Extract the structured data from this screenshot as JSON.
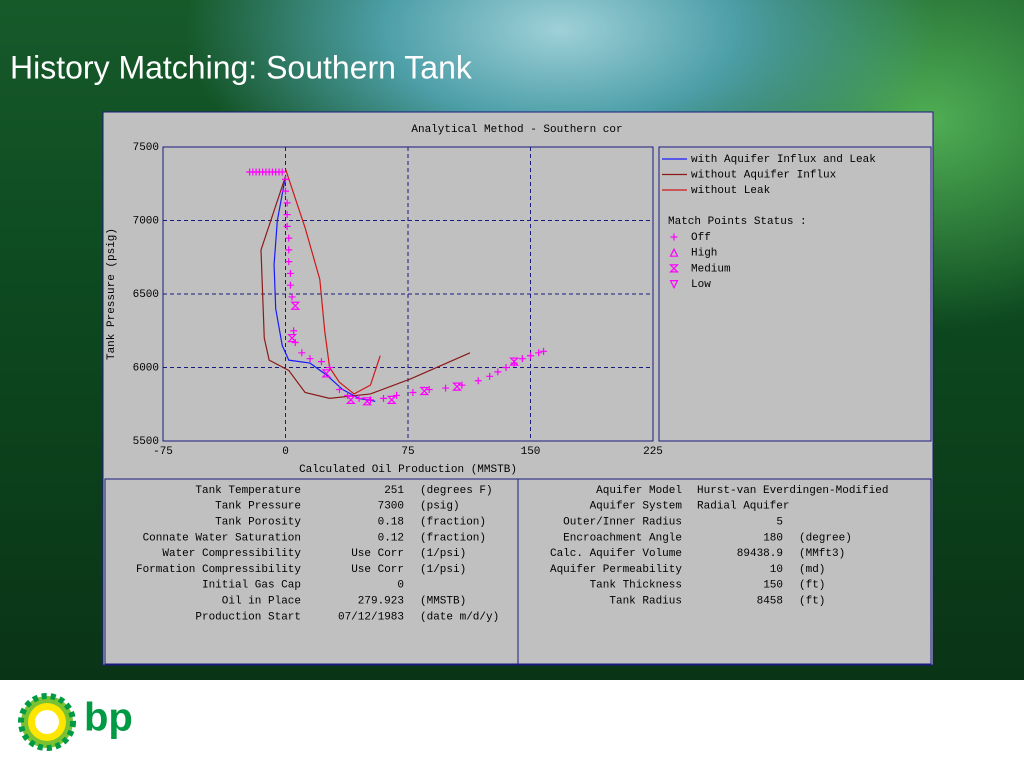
{
  "slide_title": "History Matching: Southern Tank",
  "chart_data": {
    "type": "line",
    "title": "Analytical Method - Southern cor",
    "x_label": "Calculated Oil Production (MMSTB)",
    "y_label": "Tank Pressure (psig)",
    "xlim": [
      -75,
      225
    ],
    "xticks": [
      -75,
      0,
      75,
      150,
      225
    ],
    "ylim": [
      5500,
      7500
    ],
    "yticks": [
      5500,
      6000,
      6500,
      7000,
      7500
    ],
    "grid": true,
    "series": [
      {
        "name": "with Aquifer Influx and Leak",
        "color": "#1a1aff",
        "x": [
          0,
          -5,
          -7,
          -6,
          -2,
          2,
          15,
          25,
          35,
          45,
          55
        ],
        "values": [
          7300,
          7000,
          6700,
          6400,
          6150,
          6050,
          6030,
          5950,
          5850,
          5790,
          5770
        ]
      },
      {
        "name": "without Aquifer Influx",
        "color": "#8b1a1a",
        "x": [
          0,
          -15,
          -13,
          -10,
          2,
          12,
          27,
          52,
          76,
          113
        ],
        "values": [
          7300,
          6800,
          6200,
          6050,
          5980,
          5830,
          5790,
          5820,
          5920,
          6100
        ]
      },
      {
        "name": "without Leak",
        "color": "#d01818",
        "x": [
          0,
          12,
          21,
          24,
          27,
          33,
          42,
          52,
          58
        ],
        "values": [
          7350,
          6950,
          6600,
          6250,
          6000,
          5900,
          5820,
          5880,
          6080
        ]
      }
    ],
    "match_points_title": "Match Points Status :",
    "match_points": [
      {
        "name": "Off",
        "marker": "plus",
        "color": "#ff00ff",
        "x": [
          -22,
          -20,
          -18,
          -16,
          -14,
          -12,
          -10,
          -8,
          -6,
          -4,
          -2,
          0,
          0,
          1,
          1,
          1,
          2,
          2,
          2,
          3,
          3,
          4,
          5,
          6,
          10,
          15,
          22,
          27,
          33,
          38,
          45,
          52,
          60,
          68,
          78,
          88,
          98,
          108,
          118,
          125,
          130,
          135,
          140,
          145,
          150,
          155,
          158
        ],
        "values": [
          7330,
          7330,
          7330,
          7330,
          7330,
          7330,
          7330,
          7330,
          7330,
          7330,
          7330,
          7280,
          7200,
          7120,
          7040,
          6960,
          6880,
          6800,
          6720,
          6640,
          6560,
          6480,
          6250,
          6170,
          6100,
          6060,
          6040,
          6000,
          5850,
          5810,
          5790,
          5780,
          5790,
          5810,
          5830,
          5850,
          5860,
          5880,
          5910,
          5940,
          5970,
          6000,
          6030,
          6060,
          6080,
          6100,
          6110
        ]
      },
      {
        "name": "High",
        "marker": "triangle",
        "color": "#ff00ff",
        "x": [],
        "values": []
      },
      {
        "name": "Medium",
        "marker": "hourglass",
        "color": "#ff00ff",
        "x": [
          6,
          4,
          25,
          40,
          50,
          65,
          85,
          105,
          140
        ],
        "values": [
          6420,
          6200,
          5960,
          5780,
          5770,
          5780,
          5840,
          5870,
          6040
        ]
      },
      {
        "name": "Low",
        "marker": "down-triangle",
        "color": "#ff00ff",
        "x": [],
        "values": []
      }
    ]
  },
  "parameters": {
    "left": [
      [
        "Tank Temperature",
        "251",
        "(degrees F)"
      ],
      [
        "Tank Pressure",
        "7300",
        "(psig)"
      ],
      [
        "Tank Porosity",
        "0.18",
        "(fraction)"
      ],
      [
        "Connate Water Saturation",
        "0.12",
        "(fraction)"
      ],
      [
        "Water Compressibility",
        "Use Corr",
        "(1/psi)"
      ],
      [
        "Formation Compressibility",
        "Use Corr",
        "(1/psi)"
      ],
      [
        "Initial Gas Cap",
        "0"
      ],
      [
        "Oil in Place",
        "279.923",
        "(MMSTB)"
      ],
      [
        "Production Start",
        "07/12/1983",
        "(date m/d/y)"
      ]
    ],
    "right_text": [
      [
        "Aquifer Model",
        "Hurst-van Everdingen-Modified"
      ],
      [
        "Aquifer System",
        "Radial Aquifer"
      ]
    ],
    "right": [
      [
        "Outer/Inner Radius",
        "5"
      ],
      [
        "Encroachment Angle",
        "180",
        "(degree)"
      ],
      [
        "Calc. Aquifer Volume",
        "89438.9",
        "(MMft3)"
      ],
      [
        "Aquifer Permeability",
        "10",
        "(md)"
      ],
      [
        "Tank Thickness",
        "150",
        "(ft)"
      ],
      [
        "Tank Radius",
        "8458",
        "(ft)"
      ]
    ]
  },
  "logo_text": "bp"
}
